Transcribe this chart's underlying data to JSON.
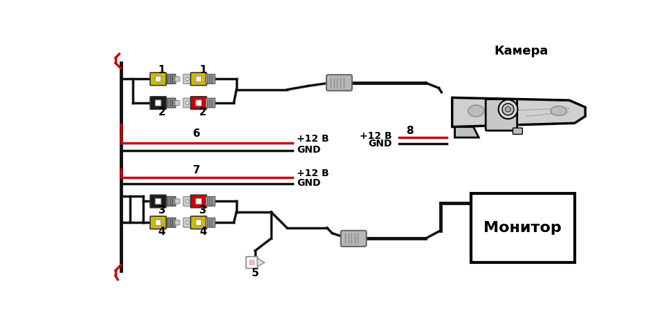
{
  "bg_color": "#ffffff",
  "camera_label": "Камера",
  "monitor_label": "Монитор",
  "label_12v": "+12 В",
  "label_gnd": "GND",
  "label_8": "8",
  "label_6": "6",
  "label_7": "7",
  "label_5": "5",
  "yellow": "#d4b800",
  "black_c": "#1a1a1a",
  "red_c": "#cc0000",
  "gray_c": "#aaaaaa",
  "wire_black": "#111111",
  "wire_red": "#cc0000",
  "lw": 2.5,
  "figsize": [
    9.6,
    4.72
  ]
}
